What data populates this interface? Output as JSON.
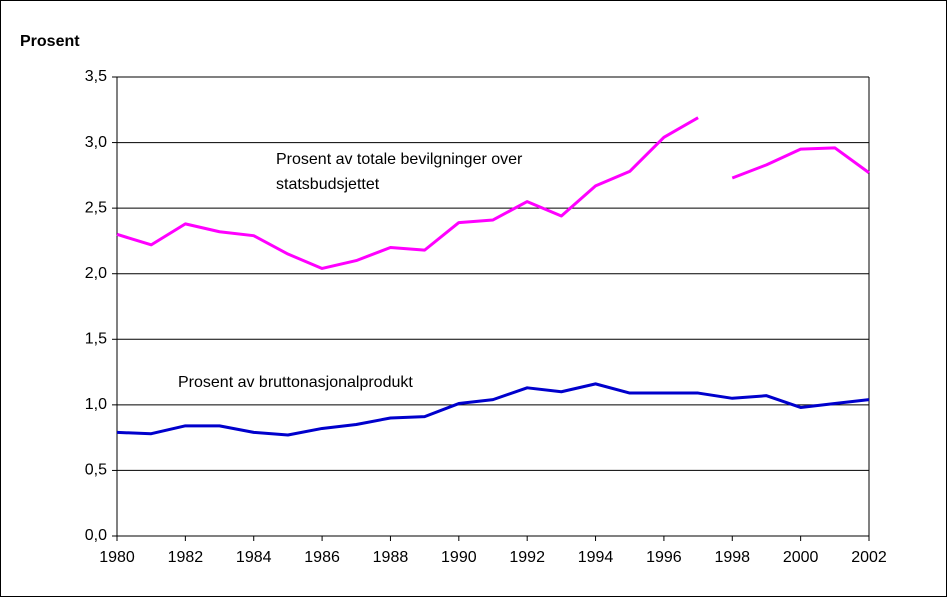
{
  "chart_data": {
    "type": "line",
    "title": "Prosent",
    "annotations": [
      "Prosent av totale bevilgninger over",
      "statsbudsjettet",
      "Prosent av bruttonasjonalprodukt"
    ],
    "series": [
      {
        "name": "Prosent av totale bevilgninger over statsbudsjettet",
        "color": "#ff00ff",
        "x": [
          1980,
          1981,
          1982,
          1983,
          1984,
          1985,
          1986,
          1987,
          1988,
          1989,
          1990,
          1991,
          1992,
          1993,
          1994,
          1995,
          1996,
          1997,
          null,
          1998,
          1999,
          2000,
          2001,
          2002
        ],
        "values": [
          2.3,
          2.22,
          2.38,
          2.32,
          2.29,
          2.15,
          2.04,
          2.1,
          2.2,
          2.18,
          2.39,
          2.41,
          2.55,
          2.44,
          2.67,
          2.78,
          3.04,
          3.19,
          null,
          2.73,
          2.83,
          2.95,
          2.96,
          2.77
        ]
      },
      {
        "name": "Prosent av bruttonasjonalprodukt",
        "color": "#0000cc",
        "x": [
          1980,
          1981,
          1982,
          1983,
          1984,
          1985,
          1986,
          1987,
          1988,
          1989,
          1990,
          1991,
          1992,
          1993,
          1994,
          1995,
          1996,
          1997,
          1998,
          1999,
          2000,
          2001,
          2002
        ],
        "values": [
          0.79,
          0.78,
          0.84,
          0.84,
          0.79,
          0.77,
          0.82,
          0.85,
          0.9,
          0.91,
          1.01,
          1.04,
          1.13,
          1.1,
          1.16,
          1.09,
          1.09,
          1.09,
          1.05,
          1.07,
          0.98,
          1.01,
          1.04
        ]
      }
    ],
    "xlim": [
      1980,
      2002
    ],
    "xticks": [
      1980,
      1982,
      1984,
      1986,
      1988,
      1990,
      1992,
      1994,
      1996,
      1998,
      2000,
      2002
    ],
    "ylim": [
      0,
      3.5
    ],
    "yticks": [
      {
        "value": 0,
        "label": "0,0"
      },
      {
        "value": 0.5,
        "label": "0,5"
      },
      {
        "value": 1,
        "label": "1,0"
      },
      {
        "value": 1.5,
        "label": "1,5"
      },
      {
        "value": 2,
        "label": "2,0"
      },
      {
        "value": 2.5,
        "label": "2,5"
      },
      {
        "value": 3,
        "label": "3,0"
      },
      {
        "value": 3.5,
        "label": "3,5"
      }
    ],
    "grid": true
  }
}
